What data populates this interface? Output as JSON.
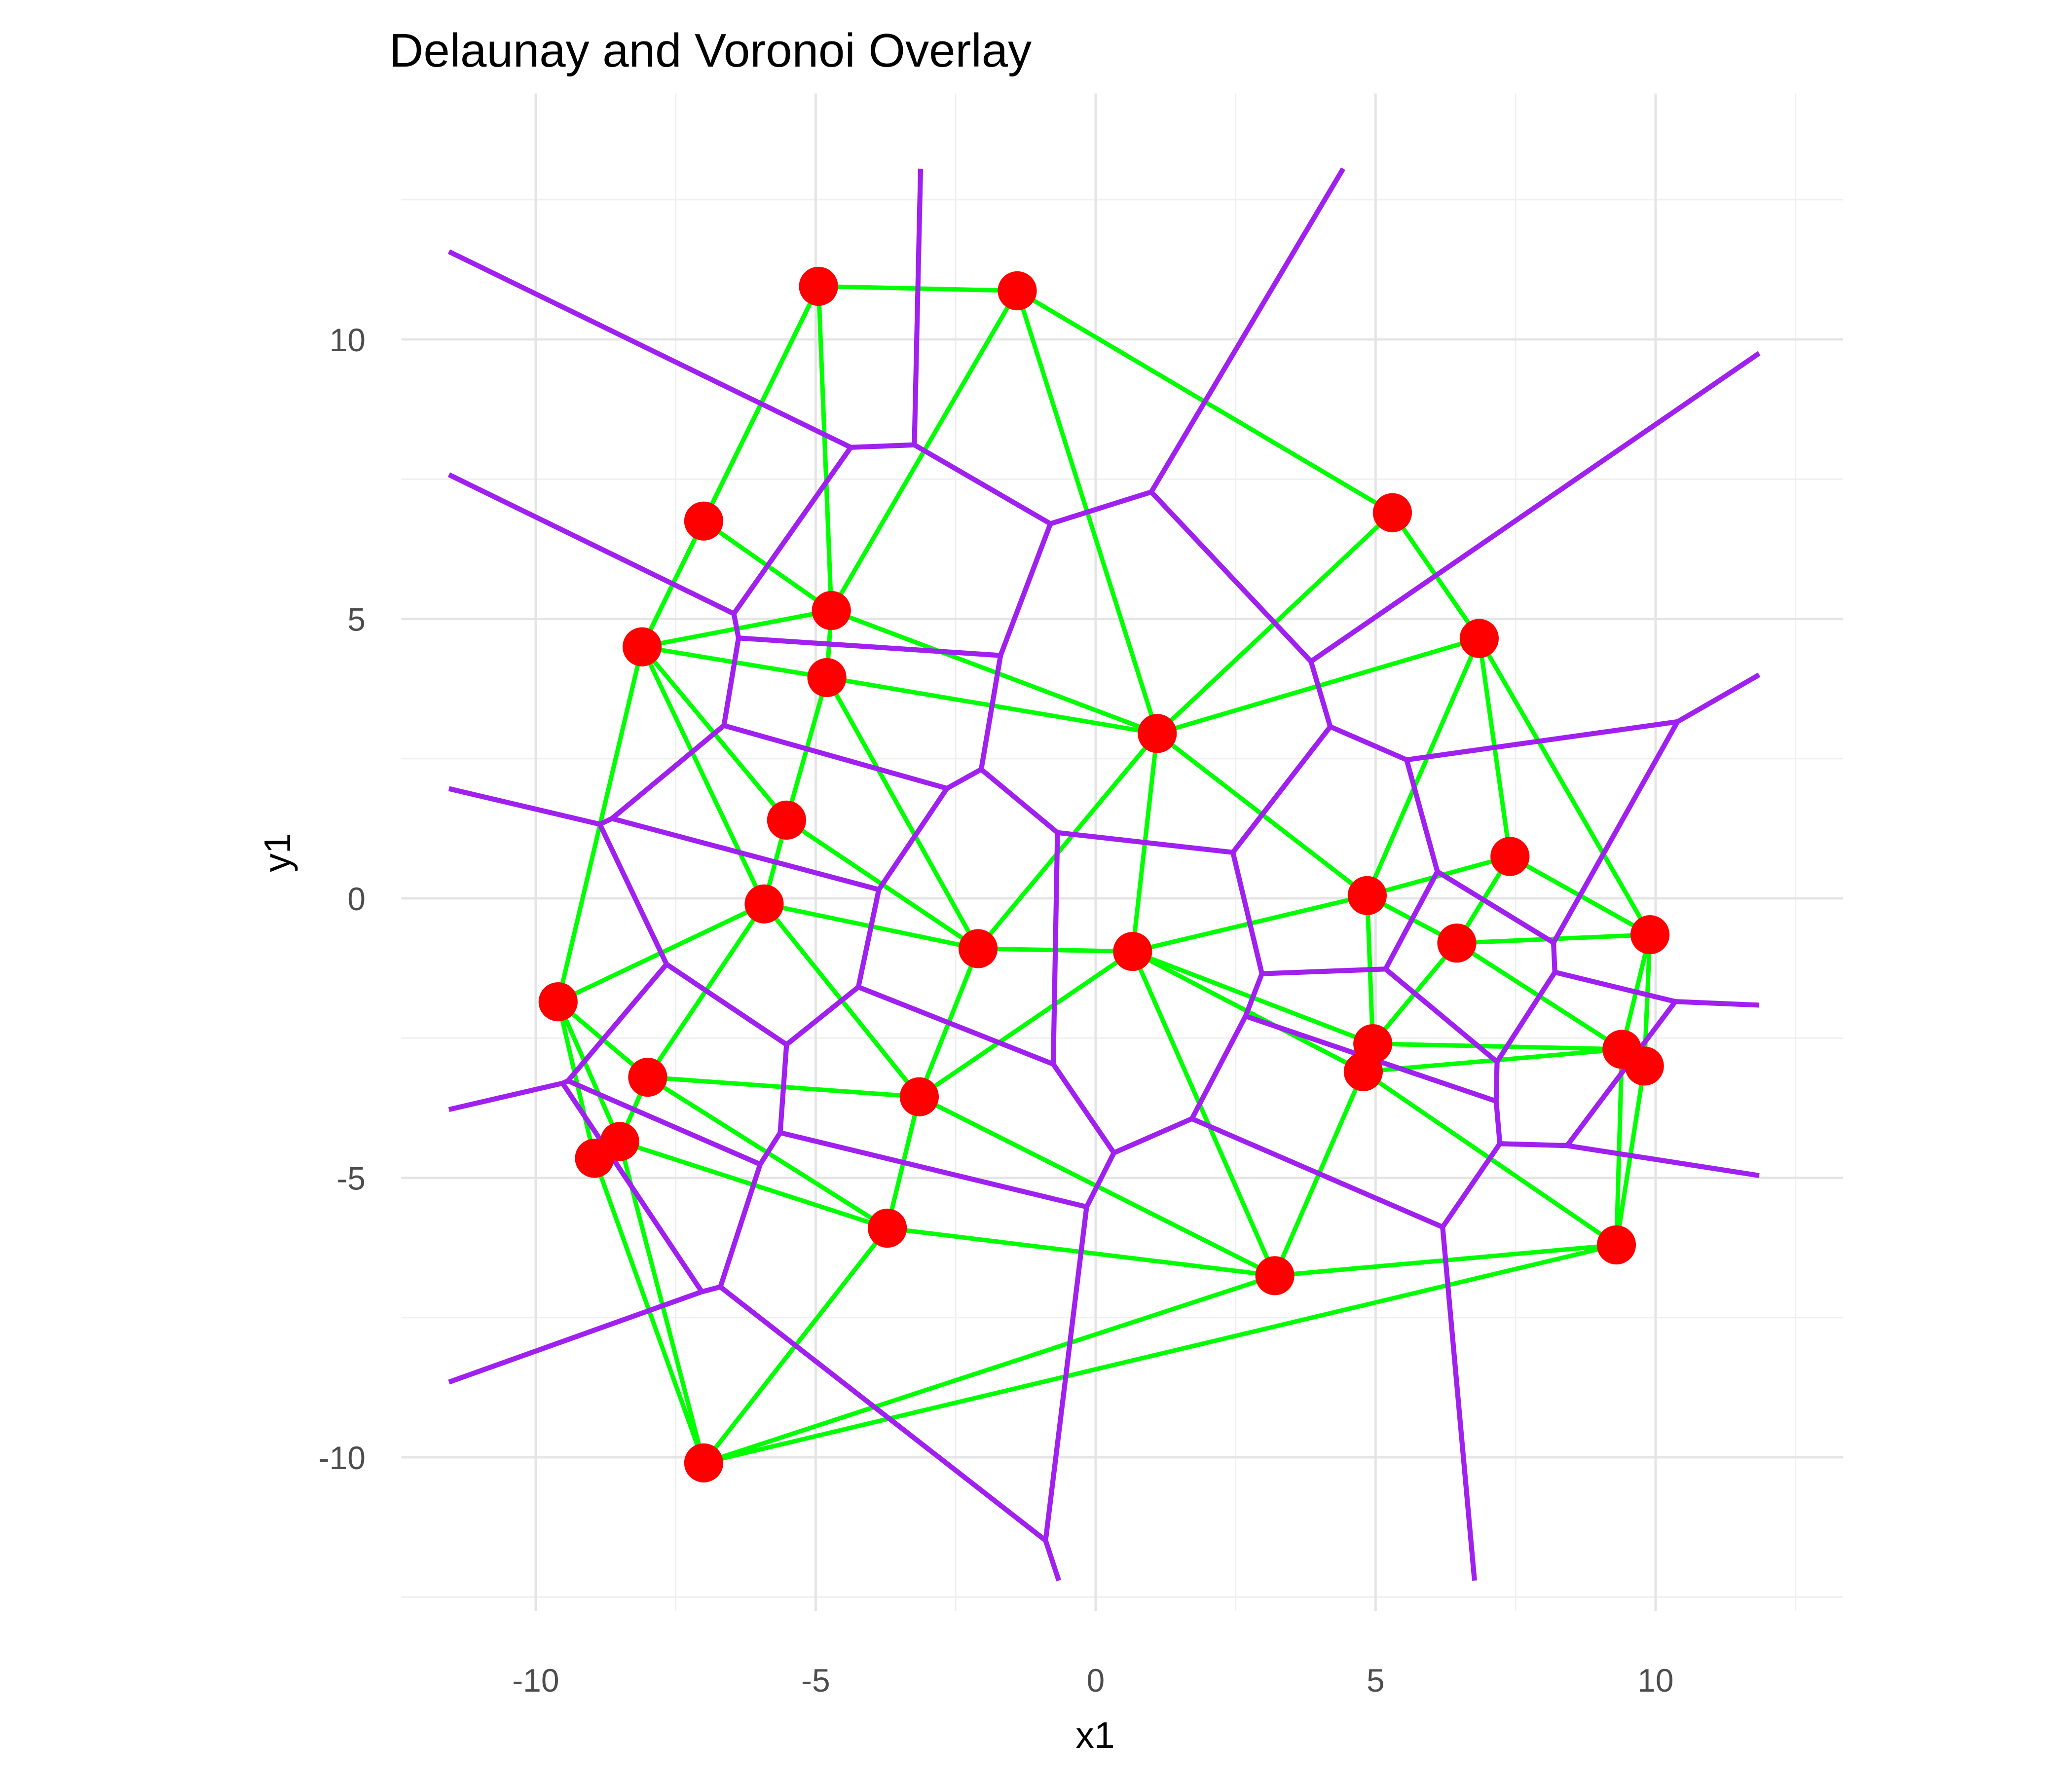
{
  "title": "Delaunay and Voronoi Overlay",
  "axes": {
    "x_label": "x1",
    "y_label": "y1",
    "x_tick_labels": [
      "-10",
      "-5",
      "0",
      "5",
      "10"
    ],
    "y_tick_labels": [
      "-10",
      "-5",
      "0",
      "5",
      "10"
    ]
  },
  "colors": {
    "point": "#FF0000",
    "delaunay_edge": "#00FF00",
    "voronoi_edge": "#A020F0",
    "grid_major": "#E4E4E4",
    "grid_minor": "#EFEFEF",
    "tick_text": "#4d4d4d",
    "title_text": "#000000",
    "background": "#FFFFFF"
  },
  "chart_data": {
    "type": "scatter",
    "title": "Delaunay and Voronoi Overlay",
    "xlabel": "x1",
    "ylabel": "y1",
    "xlim": [
      -12.4,
      13.35
    ],
    "ylim": [
      -12.75,
      14.4
    ],
    "x_major_ticks": [
      -10,
      -5,
      0,
      5,
      10
    ],
    "y_major_ticks": [
      -10,
      -5,
      0,
      5,
      10
    ],
    "x_minor_ticks": [
      -7.5,
      -2.5,
      2.5,
      7.5,
      12.5
    ],
    "y_minor_ticks": [
      -12.5,
      -7.5,
      -2.5,
      2.5,
      7.5,
      12.5
    ],
    "grid": true,
    "legend": false,
    "overlays": [
      "delaunay-triangulation-green",
      "voronoi-diagram-purple"
    ],
    "voronoi_window_expand_fraction": 0.1,
    "points": [
      [
        -4.95,
        10.95
      ],
      [
        -1.4,
        10.87
      ],
      [
        -7.0,
        6.75
      ],
      [
        5.3,
        6.9
      ],
      [
        -4.72,
        5.15
      ],
      [
        -8.1,
        4.5
      ],
      [
        -4.8,
        3.95
      ],
      [
        6.85,
        4.65
      ],
      [
        1.1,
        2.95
      ],
      [
        -5.52,
        1.4
      ],
      [
        7.4,
        0.75
      ],
      [
        -5.92,
        -0.1
      ],
      [
        4.85,
        0.05
      ],
      [
        -2.1,
        -0.9
      ],
      [
        0.66,
        -0.95
      ],
      [
        6.45,
        -0.8
      ],
      [
        9.9,
        -0.65
      ],
      [
        -9.6,
        -1.85
      ],
      [
        4.95,
        -2.6
      ],
      [
        4.78,
        -3.1
      ],
      [
        9.4,
        -2.7
      ],
      [
        9.8,
        -3.0
      ],
      [
        -8.0,
        -3.2
      ],
      [
        -3.15,
        -3.55
      ],
      [
        -8.5,
        -4.35
      ],
      [
        -8.95,
        -4.65
      ],
      [
        -3.72,
        -5.9
      ],
      [
        9.3,
        -6.2
      ],
      [
        3.2,
        -6.75
      ],
      [
        -7.0,
        -10.1
      ]
    ]
  }
}
